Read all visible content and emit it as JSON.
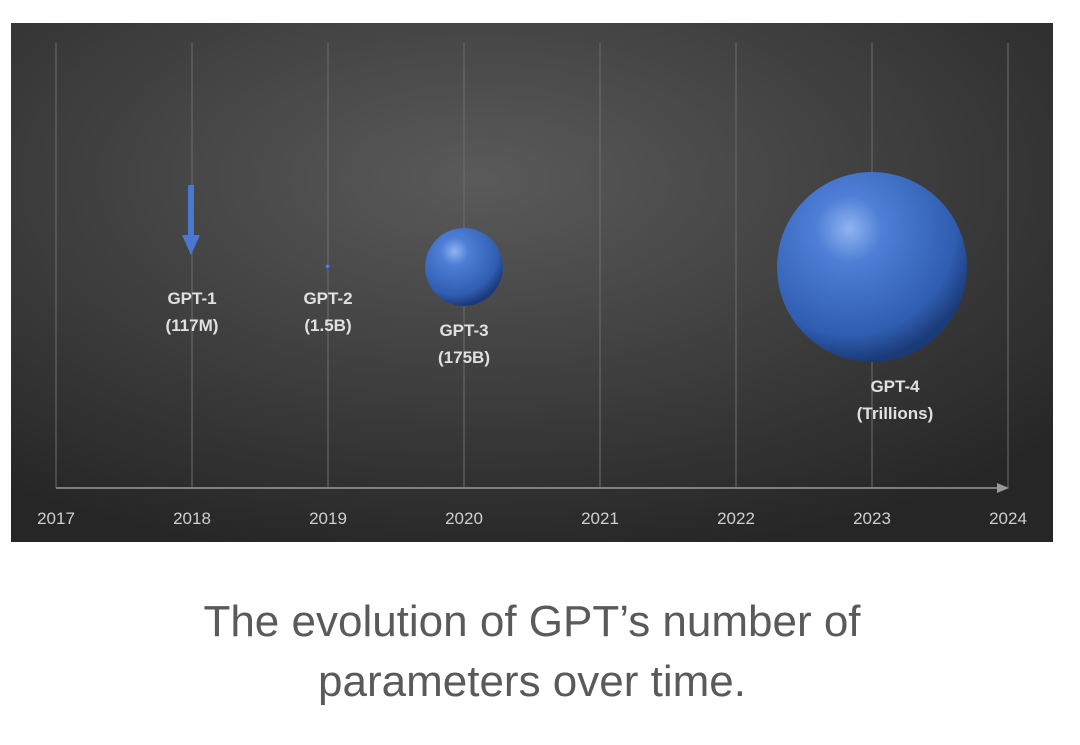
{
  "chart_data": {
    "type": "scatter",
    "subtype": "bubble",
    "title": "",
    "xlabel": "",
    "ylabel": "",
    "xlim": [
      2017,
      2024
    ],
    "x_ticks": [
      "2017",
      "2018",
      "2019",
      "2020",
      "2021",
      "2022",
      "2023",
      "2024"
    ],
    "grid": "vertical",
    "points": [
      {
        "name": "GPT-1",
        "year": 2018,
        "label_line1": "GPT-1",
        "label_line2": "(117M)",
        "marker": "arrow",
        "relative_size": 0
      },
      {
        "name": "GPT-2",
        "year": 2019,
        "label_line1": "GPT-2",
        "label_line2": "(1.5B)",
        "marker": "bubble",
        "relative_size": 0.02
      },
      {
        "name": "GPT-3",
        "year": 2020,
        "label_line1": "GPT-3",
        "label_line2": "(175B)",
        "marker": "bubble",
        "relative_size": 0.41
      },
      {
        "name": "GPT-4",
        "year": 2023,
        "label_line1": "GPT-4",
        "label_line2": "(Trillions)",
        "marker": "bubble",
        "relative_size": 1.0
      }
    ],
    "colors": {
      "bubble": "#3d6cc4",
      "arrow": "#4a78d0",
      "text": "#e0e0e0",
      "axis": "#9a9a9a"
    }
  },
  "caption": {
    "line1": "The evolution of GPT’s number of",
    "line2": "parameters over time."
  }
}
